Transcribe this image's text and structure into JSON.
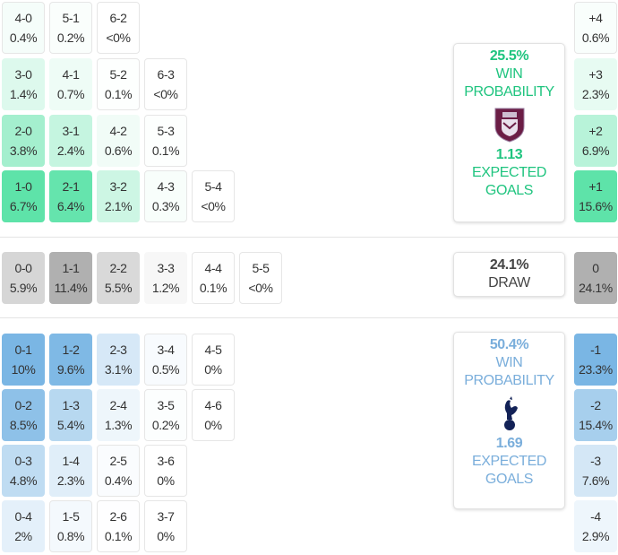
{
  "colors": {
    "home": "#5ee3a9",
    "draw": "#b0b0b0",
    "away": "#7ab6e4",
    "home_text": "#1fc47f",
    "away_text": "#7aaedb",
    "draw_text": "#444444"
  },
  "home_grid": [
    [
      {
        "score": "4-0",
        "pct": "0.4%",
        "v": 0.4
      },
      {
        "score": "5-1",
        "pct": "0.2%",
        "v": 0.2
      },
      {
        "score": "6-2",
        "pct": "<0%",
        "v": 0
      }
    ],
    [
      {
        "score": "3-0",
        "pct": "1.4%",
        "v": 1.4
      },
      {
        "score": "4-1",
        "pct": "0.7%",
        "v": 0.7
      },
      {
        "score": "5-2",
        "pct": "0.1%",
        "v": 0.1
      },
      {
        "score": "6-3",
        "pct": "<0%",
        "v": 0
      }
    ],
    [
      {
        "score": "2-0",
        "pct": "3.8%",
        "v": 3.8
      },
      {
        "score": "3-1",
        "pct": "2.4%",
        "v": 2.4
      },
      {
        "score": "4-2",
        "pct": "0.6%",
        "v": 0.6
      },
      {
        "score": "5-3",
        "pct": "0.1%",
        "v": 0.1
      }
    ],
    [
      {
        "score": "1-0",
        "pct": "6.7%",
        "v": 6.7
      },
      {
        "score": "2-1",
        "pct": "6.4%",
        "v": 6.4
      },
      {
        "score": "3-2",
        "pct": "2.1%",
        "v": 2.1
      },
      {
        "score": "4-3",
        "pct": "0.3%",
        "v": 0.3
      },
      {
        "score": "5-4",
        "pct": "<0%",
        "v": 0
      }
    ]
  ],
  "draw_row": [
    {
      "score": "0-0",
      "pct": "5.9%",
      "v": 5.9
    },
    {
      "score": "1-1",
      "pct": "11.4%",
      "v": 11.4
    },
    {
      "score": "2-2",
      "pct": "5.5%",
      "v": 5.5
    },
    {
      "score": "3-3",
      "pct": "1.2%",
      "v": 1.2
    },
    {
      "score": "4-4",
      "pct": "0.1%",
      "v": 0.1
    },
    {
      "score": "5-5",
      "pct": "<0%",
      "v": 0
    }
  ],
  "away_grid": [
    [
      {
        "score": "0-1",
        "pct": "10%",
        "v": 10
      },
      {
        "score": "1-2",
        "pct": "9.6%",
        "v": 9.6
      },
      {
        "score": "2-3",
        "pct": "3.1%",
        "v": 3.1
      },
      {
        "score": "3-4",
        "pct": "0.5%",
        "v": 0.5
      },
      {
        "score": "4-5",
        "pct": "0%",
        "v": 0
      }
    ],
    [
      {
        "score": "0-2",
        "pct": "8.5%",
        "v": 8.5
      },
      {
        "score": "1-3",
        "pct": "5.4%",
        "v": 5.4
      },
      {
        "score": "2-4",
        "pct": "1.3%",
        "v": 1.3
      },
      {
        "score": "3-5",
        "pct": "0.2%",
        "v": 0.2
      },
      {
        "score": "4-6",
        "pct": "0%",
        "v": 0
      }
    ],
    [
      {
        "score": "0-3",
        "pct": "4.8%",
        "v": 4.8
      },
      {
        "score": "1-4",
        "pct": "2.3%",
        "v": 2.3
      },
      {
        "score": "2-5",
        "pct": "0.4%",
        "v": 0.4
      },
      {
        "score": "3-6",
        "pct": "0%",
        "v": 0
      }
    ],
    [
      {
        "score": "0-4",
        "pct": "2%",
        "v": 2
      },
      {
        "score": "1-5",
        "pct": "0.8%",
        "v": 0.8
      },
      {
        "score": "2-6",
        "pct": "0.1%",
        "v": 0.1
      },
      {
        "score": "3-7",
        "pct": "0%",
        "v": 0
      }
    ]
  ],
  "margins": [
    {
      "label": "+4",
      "pct": "0.6%",
      "v": 0.6,
      "side": "home"
    },
    {
      "label": "+3",
      "pct": "2.3%",
      "v": 2.3,
      "side": "home"
    },
    {
      "label": "+2",
      "pct": "6.9%",
      "v": 6.9,
      "side": "home"
    },
    {
      "label": "+1",
      "pct": "15.6%",
      "v": 15.6,
      "side": "home"
    },
    {
      "label": "0",
      "pct": "24.1%",
      "v": 24.1,
      "side": "draw"
    },
    {
      "label": "-1",
      "pct": "23.3%",
      "v": 23.3,
      "side": "away"
    },
    {
      "label": "-2",
      "pct": "15.4%",
      "v": 15.4,
      "side": "away"
    },
    {
      "label": "-3",
      "pct": "7.6%",
      "v": 7.6,
      "side": "away"
    },
    {
      "label": "-4",
      "pct": "2.9%",
      "v": 2.9,
      "side": "away"
    }
  ],
  "home_card": {
    "win_pct": "25.5%",
    "win_label_1": "WIN",
    "win_label_2": "PROBABILITY",
    "xg": "1.13",
    "xg_label_1": "EXPECTED",
    "xg_label_2": "GOALS",
    "crest": "burnley-crest-icon"
  },
  "draw_card": {
    "pct": "24.1%",
    "label": "DRAW"
  },
  "away_card": {
    "win_pct": "50.4%",
    "win_label_1": "WIN",
    "win_label_2": "PROBABILITY",
    "xg": "1.69",
    "xg_label_1": "EXPECTED",
    "xg_label_2": "GOALS",
    "crest": "tottenham-crest-icon"
  }
}
